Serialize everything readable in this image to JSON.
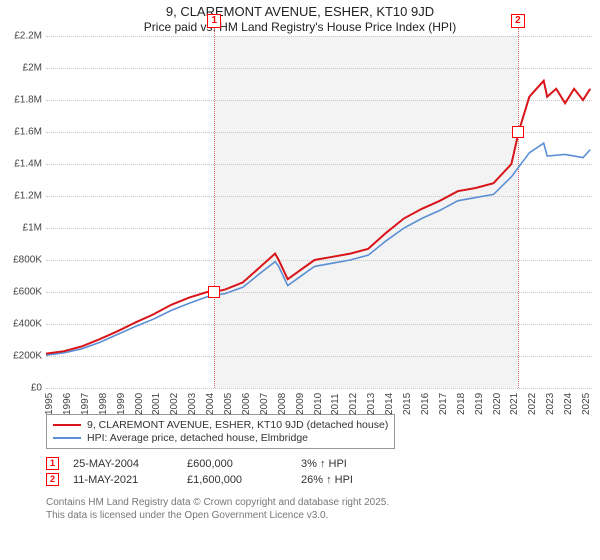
{
  "title": "9, CLAREMONT AVENUE, ESHER, KT10 9JD",
  "subtitle": "Price paid vs. HM Land Registry's House Price Index (HPI)",
  "chart": {
    "type": "line",
    "background_color": "#ffffff",
    "shade_color": "#f3f3f3",
    "grid_color": "#c8c8c8",
    "xlim": [
      1995,
      2025.5
    ],
    "ylim": [
      0,
      2200000
    ],
    "ytick_step": 200000,
    "y_ticks": [
      "£0",
      "£200K",
      "£400K",
      "£600K",
      "£800K",
      "£1M",
      "£1.2M",
      "£1.4M",
      "£1.6M",
      "£1.8M",
      "£2M",
      "£2.2M"
    ],
    "x_ticks": [
      1995,
      1996,
      1997,
      1998,
      1999,
      2000,
      2001,
      2002,
      2003,
      2004,
      2005,
      2006,
      2007,
      2008,
      2009,
      2010,
      2011,
      2012,
      2013,
      2014,
      2015,
      2016,
      2017,
      2018,
      2019,
      2020,
      2021,
      2022,
      2023,
      2024,
      2025
    ],
    "series": [
      {
        "name": "9, CLAREMONT AVENUE, ESHER, KT10 9JD (detached house)",
        "color": "#d8151a",
        "width": 2,
        "x": [
          1995,
          1996,
          1997,
          1998,
          1999,
          2000,
          2001,
          2002,
          2003,
          2004,
          2004.4,
          2005,
          2006,
          2007,
          2007.8,
          2008,
          2008.5,
          2009,
          2010,
          2011,
          2012,
          2013,
          2014,
          2015,
          2016,
          2017,
          2018,
          2019,
          2020,
          2021,
          2021.4,
          2022,
          2022.8,
          2023,
          2023.5,
          2024,
          2024.5,
          2025,
          2025.4
        ],
        "y": [
          215000,
          230000,
          260000,
          305000,
          355000,
          410000,
          460000,
          520000,
          565000,
          600000,
          600000,
          615000,
          660000,
          760000,
          840000,
          800000,
          680000,
          720000,
          800000,
          820000,
          840000,
          870000,
          970000,
          1060000,
          1120000,
          1170000,
          1230000,
          1250000,
          1280000,
          1400000,
          1600000,
          1820000,
          1920000,
          1820000,
          1870000,
          1780000,
          1870000,
          1800000,
          1870000
        ]
      },
      {
        "name": "HPI: Average price, detached house, Elmbridge",
        "color": "#5b8fd4",
        "width": 1.6,
        "x": [
          1995,
          1996,
          1997,
          1998,
          1999,
          2000,
          2001,
          2002,
          2003,
          2004,
          2005,
          2006,
          2007,
          2007.8,
          2008,
          2008.5,
          2009,
          2010,
          2011,
          2012,
          2013,
          2014,
          2015,
          2016,
          2017,
          2018,
          2019,
          2020,
          2021,
          2022,
          2022.8,
          2023,
          2024,
          2025,
          2025.4
        ],
        "y": [
          205000,
          220000,
          245000,
          285000,
          335000,
          385000,
          430000,
          485000,
          530000,
          570000,
          590000,
          630000,
          720000,
          790000,
          760000,
          640000,
          680000,
          760000,
          780000,
          800000,
          830000,
          920000,
          1000000,
          1060000,
          1110000,
          1170000,
          1190000,
          1210000,
          1320000,
          1470000,
          1530000,
          1450000,
          1460000,
          1440000,
          1490000
        ]
      }
    ],
    "markers": [
      {
        "n": "1",
        "x": 2004.4,
        "y": 600000
      },
      {
        "n": "2",
        "x": 2021.36,
        "y": 1600000
      }
    ],
    "shaded_ranges": [
      [
        2004.4,
        2021.36
      ]
    ],
    "title_fontsize": 13,
    "label_fontsize": 10
  },
  "legend": {
    "series1_label": "9, CLAREMONT AVENUE, ESHER, KT10 9JD (detached house)",
    "series1_color": "#d8151a",
    "series2_label": "HPI: Average price, detached house, Elmbridge",
    "series2_color": "#5b8fd4"
  },
  "transactions": [
    {
      "n": "1",
      "date": "25-MAY-2004",
      "price": "£600,000",
      "pct": "3% ↑ HPI"
    },
    {
      "n": "2",
      "date": "11-MAY-2021",
      "price": "£1,600,000",
      "pct": "26% ↑ HPI"
    }
  ],
  "footer": {
    "line1": "Contains HM Land Registry data © Crown copyright and database right 2025.",
    "line2": "This data is licensed under the Open Government Licence v3.0."
  }
}
